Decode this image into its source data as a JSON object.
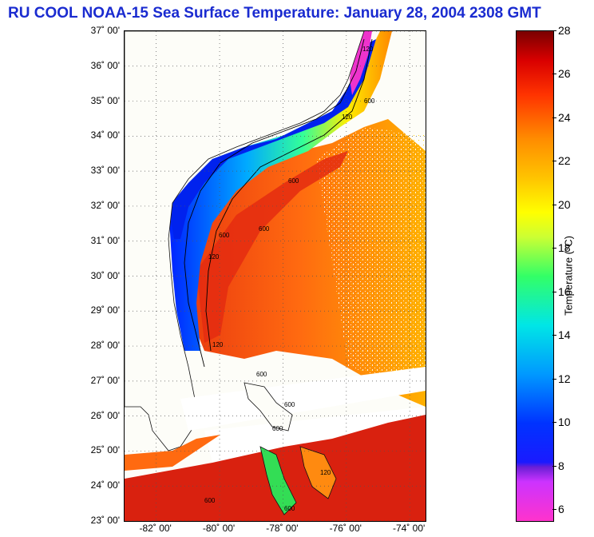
{
  "header": {
    "title": "RU COOL  NOAA-15  Sea Surface Temperature:  January 28, 2004 2308 GMT"
  },
  "map": {
    "lat_labels": [
      "37˚ 00'",
      "36˚ 00'",
      "35˚ 00'",
      "34˚ 00'",
      "33˚ 00'",
      "32˚ 00'",
      "31˚ 00'",
      "30˚ 00'",
      "29˚ 00'",
      "28˚ 00'",
      "27˚ 00'",
      "26˚ 00'",
      "25˚ 00'",
      "24˚ 00'",
      "23˚ 00'"
    ],
    "lat_values": [
      37,
      36,
      35,
      34,
      33,
      32,
      31,
      30,
      29,
      28,
      27,
      26,
      25,
      24,
      23
    ],
    "lon_labels": [
      "-82˚ 00'",
      "-80˚ 00'",
      "-78˚ 00'",
      "-76˚ 00'",
      "-74˚ 00'"
    ],
    "lon_values": [
      -82,
      -80,
      -78,
      -76,
      -74
    ],
    "lat_range": [
      23,
      37
    ],
    "lon_range": [
      -83,
      -73.5
    ],
    "isobath_labels": [
      "120",
      "600",
      "120",
      "600",
      "120",
      "600",
      "120",
      "600",
      "600",
      "600",
      "600",
      "120",
      "600",
      "600"
    ]
  },
  "colorbar": {
    "ticks": [
      "28",
      "26",
      "24",
      "22",
      "20",
      "18",
      "16",
      "14",
      "12",
      "10",
      "8",
      "6"
    ],
    "tick_values": [
      28,
      26,
      24,
      22,
      20,
      18,
      16,
      14,
      12,
      10,
      8,
      6
    ],
    "range": [
      5.5,
      28
    ],
    "label": "Temperature (°C)"
  },
  "colors": {
    "title": "#1a2bd0",
    "ocean_warm": "#e8350f",
    "ocean_cool": "#0033ff",
    "land": "#fdfdf8"
  }
}
